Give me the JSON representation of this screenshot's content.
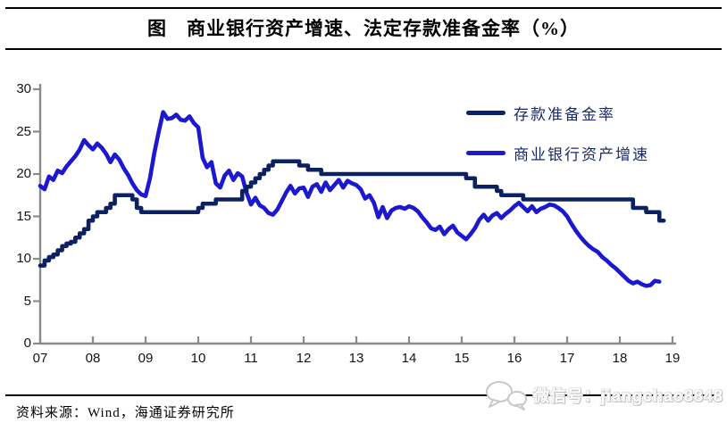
{
  "title": "图　商业银行资产增速、法定存款准备金率（%）",
  "source": "资料来源：Wind，海通证券研究所",
  "watermark": {
    "text": "微信号：jiangchao8848",
    "icon": "chat-bubbles-icon"
  },
  "legend": [
    {
      "label": "存款准备金率",
      "color": "#0b2161"
    },
    {
      "label": "商业银行资产增速",
      "color": "#1b18cf"
    }
  ],
  "chart_data": {
    "type": "line",
    "title": "商业银行资产增速、法定存款准备金率（%）",
    "grid": false,
    "legend_position": "inside-upper-right",
    "axis_color": "#8a8a8a",
    "x_axis": {
      "min": 2007,
      "max": 2019,
      "tick_labels": [
        "07",
        "08",
        "09",
        "10",
        "11",
        "12",
        "13",
        "14",
        "15",
        "16",
        "17",
        "18",
        "19"
      ],
      "tick_years": [
        2007,
        2008,
        2009,
        2010,
        2011,
        2012,
        2013,
        2014,
        2015,
        2016,
        2017,
        2018,
        2019
      ]
    },
    "y_axis": {
      "min": 0,
      "max": 30,
      "ticks": [
        0,
        5,
        10,
        15,
        20,
        25,
        30
      ]
    },
    "series": [
      {
        "name": "存款准备金率",
        "name_id": "rrr-line",
        "color": "#0b2161",
        "style": "step",
        "unit": "%",
        "frequency": "monthly",
        "x_start_year": 2007,
        "x_start_month": 1,
        "values": [
          9.2,
          9.8,
          10.2,
          10.5,
          11,
          11.5,
          11.8,
          12,
          12.5,
          13,
          13.5,
          14.5,
          15,
          15.5,
          15.5,
          16,
          16.5,
          17.5,
          17.5,
          17.5,
          17.5,
          17,
          16,
          15.5,
          15.5,
          15.5,
          15.5,
          15.5,
          15.5,
          15.5,
          15.5,
          15.5,
          15.5,
          15.5,
          15.5,
          15.5,
          16,
          16.5,
          16.5,
          16.5,
          17,
          17,
          17,
          17,
          17,
          17,
          18,
          18.5,
          19,
          19.5,
          20,
          20.5,
          21,
          21.5,
          21.5,
          21.5,
          21.5,
          21.5,
          21.5,
          21,
          21,
          20.5,
          20.5,
          20.5,
          20,
          20,
          20,
          20,
          20,
          20,
          20,
          20,
          20,
          20,
          20,
          20,
          20,
          20,
          20,
          20,
          20,
          20,
          20,
          20,
          20,
          20,
          20,
          20,
          20,
          20,
          20,
          20,
          20,
          20,
          20,
          20,
          20,
          19.5,
          19.5,
          18.5,
          18.5,
          18.5,
          18.5,
          18.5,
          18,
          17.5,
          17.5,
          17.5,
          17.5,
          17.5,
          17,
          17,
          17,
          17,
          17,
          17,
          17,
          17,
          17,
          17,
          17,
          17,
          17,
          17,
          17,
          17,
          17,
          17,
          17,
          17,
          17,
          17,
          17,
          17,
          17,
          16,
          16,
          16,
          15.5,
          15.5,
          15.5,
          14.5,
          14.5
        ]
      },
      {
        "name": "商业银行资产增速",
        "name_id": "asset-growth-line",
        "color": "#1b18cf",
        "style": "smooth",
        "unit": "%",
        "frequency": "monthly",
        "x_start_year": 2007,
        "x_start_month": 1,
        "values": [
          18.6,
          18.2,
          19.7,
          19.3,
          20.4,
          20.1,
          20.9,
          21.5,
          22.1,
          22.9,
          24.0,
          23.4,
          22.9,
          23.6,
          23.1,
          22.4,
          21.4,
          22.3,
          21.7,
          20.7,
          19.9,
          18.9,
          18.1,
          17.6,
          17.4,
          19.5,
          22.5,
          25.0,
          27.3,
          26.5,
          26.6,
          27.0,
          26.4,
          26.3,
          26.8,
          26.0,
          25.5,
          21.9,
          20.8,
          21.4,
          18.9,
          18.4,
          19.8,
          20.4,
          19.3,
          20.1,
          19.7,
          17.8,
          16.4,
          17.2,
          16.3,
          16.0,
          15.4,
          15.2,
          15.8,
          16.8,
          17.8,
          18.6,
          17.7,
          18.3,
          18.4,
          17.3,
          18.5,
          18.8,
          17.9,
          19.0,
          18.1,
          18.7,
          19.3,
          18.4,
          19.2,
          18.9,
          18.7,
          18.2,
          17.1,
          17.5,
          16.6,
          14.9,
          16.1,
          14.8,
          15.7,
          16.0,
          16.1,
          15.9,
          16.2,
          16.0,
          15.6,
          14.9,
          14.3,
          13.6,
          13.4,
          13.8,
          12.9,
          13.5,
          13.9,
          13.1,
          12.7,
          12.3,
          12.9,
          13.6,
          14.6,
          15.2,
          14.5,
          15.1,
          15.4,
          14.8,
          15.3,
          15.7,
          16.2,
          16.6,
          16.1,
          15.6,
          16.2,
          15.5,
          15.9,
          16.1,
          16.4,
          16.3,
          16.0,
          15.6,
          15.0,
          14.1,
          13.3,
          12.6,
          12.0,
          11.5,
          11.1,
          10.8,
          10.2,
          9.8,
          9.3,
          8.9,
          8.4,
          7.9,
          7.4,
          7.1,
          7.3,
          7.0,
          6.8,
          6.9,
          7.4,
          7.3
        ]
      }
    ]
  }
}
